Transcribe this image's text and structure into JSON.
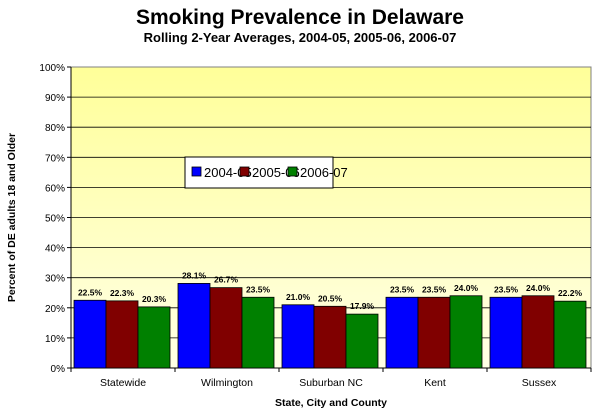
{
  "chart_data": {
    "type": "bar",
    "title": "Smoking Prevalence in Delaware",
    "subtitle": "Rolling 2-Year Averages, 2004-05, 2005-06, 2006-07",
    "xlabel": "State, City and County",
    "ylabel": "Percent of DE adults 18 and Older",
    "ylim": [
      0,
      100
    ],
    "yticks": [
      "0%",
      "10%",
      "20%",
      "30%",
      "40%",
      "50%",
      "60%",
      "70%",
      "80%",
      "90%",
      "100%"
    ],
    "grid": true,
    "legend_placement": "center-left",
    "categories": [
      "Statewide",
      "Wilmington",
      "Suburban NC",
      "Kent",
      "Sussex"
    ],
    "series": [
      {
        "name": "2004-05",
        "color": "#0000FF",
        "values": [
          22.5,
          28.1,
          21.0,
          23.5,
          23.5
        ],
        "labels": [
          "22.5%",
          "28.1%",
          "21.0%",
          "23.5%",
          "23.5%"
        ]
      },
      {
        "name": "2005-06",
        "color": "#800000",
        "values": [
          22.3,
          26.7,
          20.5,
          23.5,
          24.0
        ],
        "labels": [
          "22.3%",
          "26.7%",
          "20.5%",
          "23.5%",
          "24.0%"
        ]
      },
      {
        "name": "2006-07",
        "color": "#008000",
        "values": [
          20.3,
          23.5,
          17.9,
          24.0,
          22.2
        ],
        "labels": [
          "20.3%",
          "23.5%",
          "17.9%",
          "24.0%",
          "22.2%"
        ]
      }
    ],
    "plot_background": "#FFFFC0"
  }
}
